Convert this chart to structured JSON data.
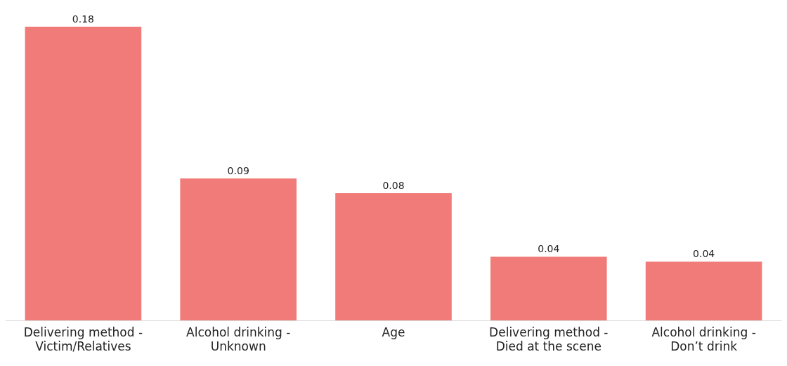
{
  "chart_data": {
    "type": "bar",
    "categories": [
      "Delivering method - Victim/Relatives",
      "Alcohol drinking - Unknown",
      "Age",
      "Delivering method - Died at the scene",
      "Alcohol drinking - Don’t drink"
    ],
    "values": [
      0.18,
      0.087,
      0.078,
      0.039,
      0.036
    ],
    "value_labels": [
      "0.18",
      "0.09",
      "0.08",
      "0.04",
      "0.04"
    ],
    "color": "#f07b78",
    "grid": false,
    "legend": false,
    "tick_labels": "x"
  }
}
